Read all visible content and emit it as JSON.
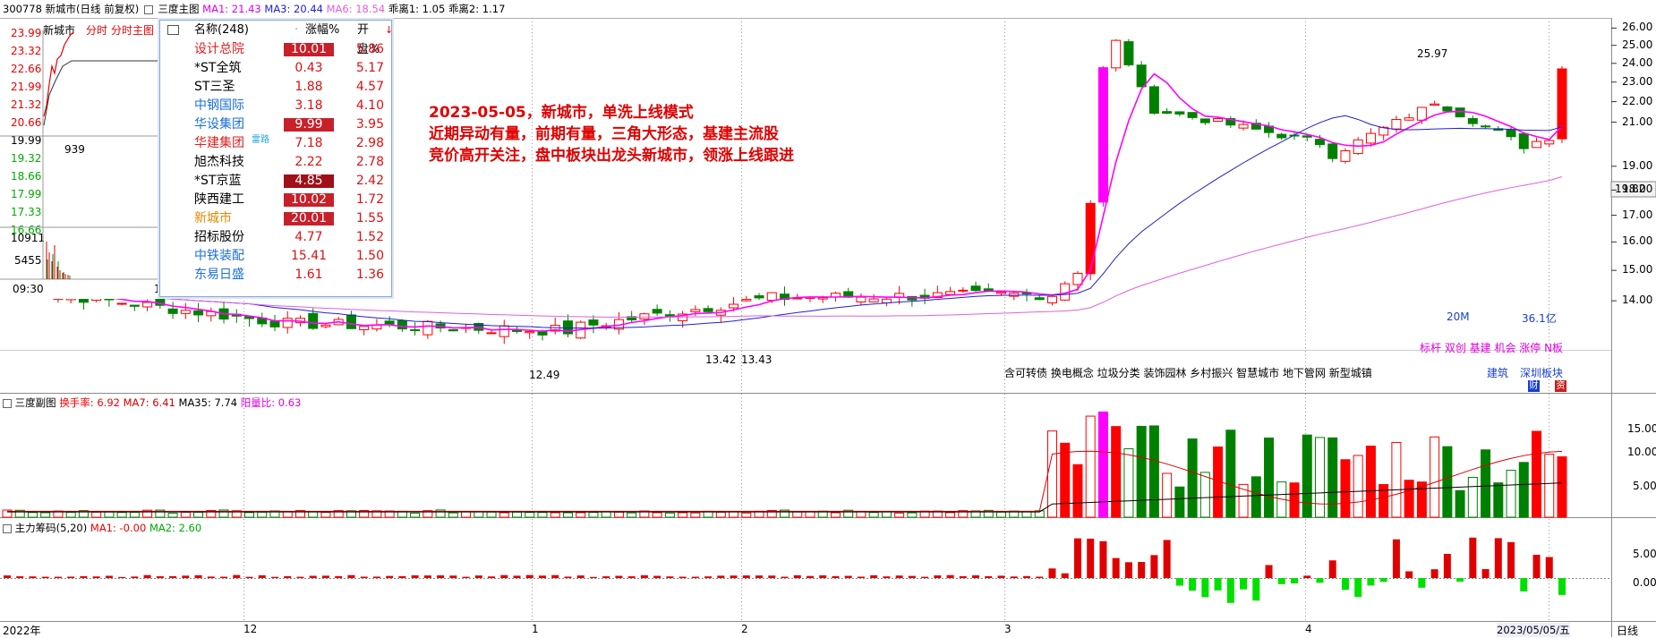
{
  "header": {
    "code": "300778",
    "name_text": "新城市(日线 前复权)",
    "main_chart_label": "三度主图",
    "ma1": "MA1: 21.43",
    "ma3": "MA3: 20.44",
    "ma6": "MA6: 18.54",
    "bias1": "乖离1: 1.05",
    "bias2": "乖离2: 1.17"
  },
  "mini_panel": {
    "title": "新城市",
    "tab1": "分时",
    "tab2": "分时主图",
    "prices": [
      "23.99",
      "23.32",
      "22.66",
      "21.99",
      "21.32",
      "20.66",
      "19.99",
      "19.32",
      "18.66",
      "17.99",
      "17.33",
      "16.66"
    ],
    "vol_labels": [
      "10911",
      "5455"
    ],
    "tick_939": "939",
    "time_start": "09:30",
    "time_end": "1"
  },
  "popup": {
    "col_name": "名称(248)",
    "col_pct": "涨幅%",
    "col_open": "开盘%",
    "rows": [
      {
        "name": "设计总院",
        "pct": "10.01",
        "open": "5.86",
        "name_color": "#e02020",
        "badge": "hi"
      },
      {
        "name": "*ST全筑",
        "pct": "0.43",
        "open": "5.17",
        "name_color": "#000000",
        "badge": ""
      },
      {
        "name": "ST三圣",
        "pct": "1.88",
        "open": "4.57",
        "name_color": "#000000",
        "badge": ""
      },
      {
        "name": "中钢国际",
        "pct": "3.18",
        "open": "4.10",
        "name_color": "#1a6fd8",
        "badge": ""
      },
      {
        "name": "华设集团",
        "pct": "9.99",
        "open": "3.95",
        "name_color": "#1a6fd8",
        "badge": "hi"
      },
      {
        "name": "华建集团",
        "pct": "7.18",
        "open": "2.98",
        "name_color": "#e02020",
        "badge": "",
        "tag": "雷路"
      },
      {
        "name": "旭杰科技",
        "pct": "2.22",
        "open": "2.78",
        "name_color": "#000000",
        "badge": ""
      },
      {
        "name": "*ST京蓝",
        "pct": "4.85",
        "open": "2.42",
        "name_color": "#000000",
        "badge": "dk"
      },
      {
        "name": "陕西建工",
        "pct": "10.02",
        "open": "1.72",
        "name_color": "#000000",
        "badge": "hi"
      },
      {
        "name": "新城市",
        "pct": "20.01",
        "open": "1.55",
        "name_color": "#e08a00",
        "badge": "hi"
      },
      {
        "name": "招标股份",
        "pct": "4.77",
        "open": "1.52",
        "name_color": "#000000",
        "badge": ""
      },
      {
        "name": "中铁装配",
        "pct": "15.41",
        "open": "1.50",
        "name_color": "#1a6fd8",
        "badge": ""
      },
      {
        "name": "东易日盛",
        "pct": "1.61",
        "open": "1.36",
        "name_color": "#1a6fd8",
        "badge": ""
      }
    ]
  },
  "annotation": {
    "line1": "2023-05-05，新城市，单洗上线模式",
    "line2": "近期异动有量，前期有量，三角大形态，基建主流股",
    "line3": "竞价高开关注，盘中板块出龙头新城市，领涨上线跟进"
  },
  "main_labels": {
    "concepts": "含可转债 换电概念 垃圾分类 装饰园林 乡村振兴 智慧城市 地下管网 新型城镇",
    "cap_20m": "20M",
    "cap_361": "36.1亿",
    "tags": "标杆 双创 基建 机会 涨停 N板",
    "industry": "建筑",
    "board": "深圳板块",
    "btn1": "财",
    "btn2": "资",
    "high_label": "25.97",
    "low_label1": "12.49",
    "low_label2": "13.42",
    "low_label3": "13.43",
    "current_price": "19.82"
  },
  "sub1": {
    "label": "三度副图",
    "turnover": "换手率: 6.92",
    "ma7": "MA7: 6.41",
    "ma35": "MA35: 7.74",
    "yangli": "阳量比: 0.63",
    "ticks": [
      "15.00",
      "10.00",
      "5.00"
    ]
  },
  "sub2": {
    "label": "主力筹码(5,20)",
    "ma1": "MA1: -0.00",
    "ma2": "MA2: 2.60",
    "ticks": [
      "5.00",
      "0.00"
    ]
  },
  "axis": {
    "price_ticks": [
      "26.00",
      "25.00",
      "24.00",
      "23.00",
      "22.00",
      "21.00",
      "19.00",
      "18.00",
      "17.00",
      "16.00",
      "15.00",
      "14.00"
    ],
    "date_labels": [
      "2022年",
      "12",
      "1",
      "2",
      "3",
      "4",
      "2023/05/05/五"
    ],
    "period": "日线"
  },
  "colors": {
    "up": "#ff0000",
    "down": "#008000",
    "ma_pink": "#ff00ff",
    "ma_blue": "#2020d0",
    "ma_violet": "#e060e0"
  },
  "chart_data": {
    "type": "candlestick",
    "title": "新城市(日线 前复权)",
    "y_range": [
      12.0,
      26.5
    ],
    "x_range": [
      "2022-11",
      "2023-05-05"
    ],
    "high": 25.97,
    "low": 12.49,
    "last_close": 19.82,
    "series": [
      {
        "name": "MA1",
        "values": [
          21.43
        ]
      },
      {
        "name": "MA3",
        "values": [
          20.44
        ]
      },
      {
        "name": "MA6",
        "values": [
          18.54
        ]
      }
    ]
  }
}
